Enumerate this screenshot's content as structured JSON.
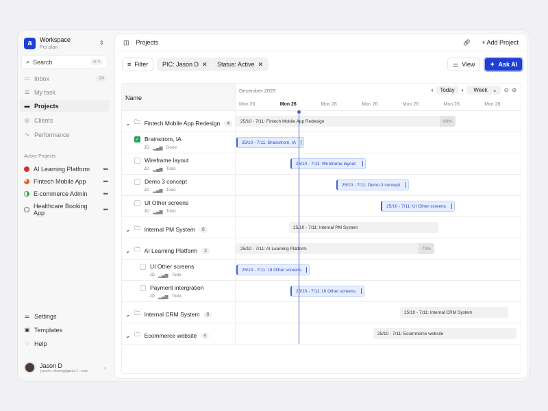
{
  "workspace": {
    "name": "Workspace",
    "plan": "Pro plan"
  },
  "search": {
    "label": "Search",
    "shortcut": "⌘ K"
  },
  "nav": [
    {
      "label": "Inbox",
      "count": "24"
    },
    {
      "label": "My task"
    },
    {
      "label": "Projects"
    },
    {
      "label": "Clients"
    },
    {
      "label": "Performance"
    }
  ],
  "active_projects": {
    "title": "Active Projects",
    "items": [
      {
        "label": "AI Learning Platform",
        "color": "#d32f2f"
      },
      {
        "label": "Fintech Mobile App",
        "color": "#f05a28"
      },
      {
        "label": "E-commerce Admin",
        "color": "#3fae4a"
      },
      {
        "label": "Healthcare Booking App",
        "color": "#ffffff"
      }
    ]
  },
  "bottom_nav": [
    {
      "label": "Settings"
    },
    {
      "label": "Templates"
    },
    {
      "label": "Help"
    }
  ],
  "user": {
    "name": "Jason D",
    "email": "jason.duong@gmail.com"
  },
  "header": {
    "breadcrumb": "Projects",
    "add_project": "Add Project"
  },
  "toolbar": {
    "filter": "Filter",
    "chips": [
      "PIC: Jason D",
      "Status: Active"
    ],
    "view": "View",
    "ask_ai": "Ask AI"
  },
  "table": {
    "name_header": "Name"
  },
  "gantt": {
    "month": "December 2025",
    "today": "Today",
    "scale": "Week",
    "days": [
      "Mon 26",
      "Mon 26",
      "Mon 26",
      "Mon 26",
      "Mon 26",
      "Mon 26",
      "Mon 26"
    ]
  },
  "rows": [
    {
      "type": "group",
      "name": "Fintech Mobile App Redesign",
      "count": "4",
      "bar": "25/10 - 7/11: Fintech Mobile App Redesign",
      "pct": "80%"
    },
    {
      "type": "task",
      "name": "Brainstrom, IA",
      "pic": "JD",
      "status": "Done",
      "done": true,
      "bar": "25/10 - 7/11: Brainstrom, IA"
    },
    {
      "type": "task",
      "name": "Wireframe layout",
      "pic": "JD",
      "status": "Todo",
      "bar": "25/10 - 7/11: Wireframe layout"
    },
    {
      "type": "task",
      "name": "Demo 3 concept",
      "pic": "JD",
      "status": "Todo",
      "bar": "25/10 - 7/11: Demo 3 concept"
    },
    {
      "type": "task",
      "name": "UI Other screens",
      "pic": "JD",
      "status": "Todo",
      "bar": "25/10 - 7/11: UI Other screens"
    },
    {
      "type": "group",
      "name": "Internal PM System",
      "count": "8",
      "bar": "25/10 - 7/11: Internal PM System"
    },
    {
      "type": "group",
      "name": "AI Learning Platform",
      "count": "2",
      "bar": "25/10 - 7/11: AI Learning Platform",
      "pct": "70%"
    },
    {
      "type": "task",
      "name": "UI Other screens",
      "pic": "JD",
      "status": "Todo",
      "bar": "25/10 - 7/11: UI Other screens"
    },
    {
      "type": "task",
      "name": "Payment intergration",
      "pic": "JD",
      "status": "Todo",
      "bar": "25/10 - 7/11: UI Other screens"
    },
    {
      "type": "group",
      "name": "Internal CRM System",
      "count": "8",
      "bar": "25/10 - 7/11: Internal CRM System"
    },
    {
      "type": "group",
      "name": "Ecommerce website",
      "count": "4",
      "bar": "25/10 - 7/11: Ecommerce website"
    }
  ]
}
